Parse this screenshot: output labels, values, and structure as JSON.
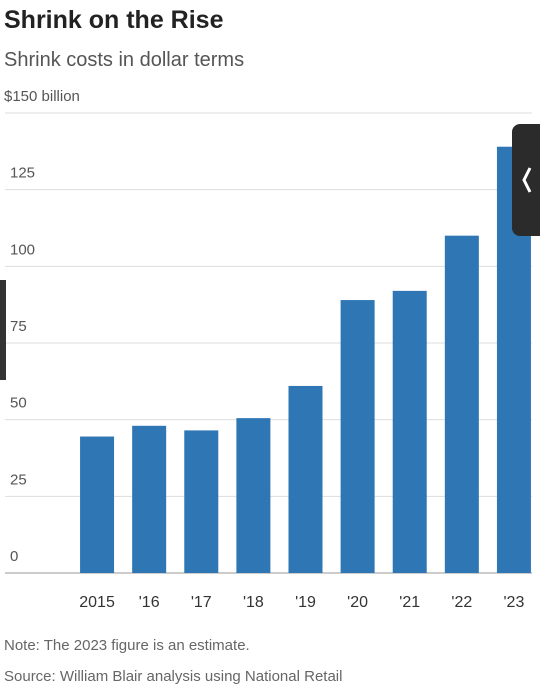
{
  "chart_data": {
    "type": "bar",
    "title": "Shrink on the Rise",
    "subtitle": "Shrink costs in dollar terms",
    "categories": [
      "2015",
      "'16",
      "'17",
      "'18",
      "'19",
      "'20",
      "'21",
      "'22",
      "'23"
    ],
    "values": [
      44.5,
      48,
      46.5,
      50.5,
      61,
      89,
      92,
      110,
      139
    ],
    "color": "#2f76b4",
    "ylim": [
      0,
      150
    ],
    "yticks": [
      0,
      25,
      50,
      75,
      100,
      125,
      {
        "value": 150,
        "label": "$150 billion"
      }
    ],
    "grid": true,
    "notes": [
      "Note: The 2023 figure is an estimate.",
      "Source: William Blair analysis using National Retail"
    ]
  }
}
